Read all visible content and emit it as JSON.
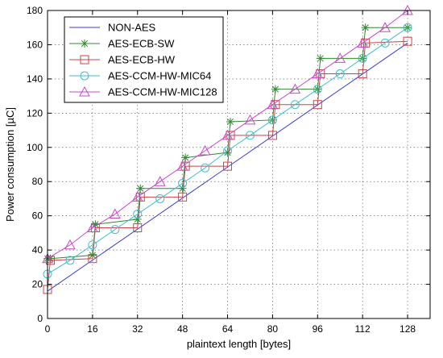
{
  "chart_data": {
    "type": "line",
    "title": "",
    "xlabel": "plaintext length [bytes]",
    "ylabel": "Power consumption [µC]",
    "xlim": [
      0,
      136
    ],
    "ylim": [
      0,
      180
    ],
    "xticks": [
      0,
      16,
      32,
      48,
      64,
      80,
      96,
      112,
      128
    ],
    "yticks": [
      0,
      20,
      40,
      60,
      80,
      100,
      120,
      140,
      160,
      180
    ],
    "grid": true,
    "legend_position": "top-left",
    "series": [
      {
        "name": "NON-AES",
        "color": "#3b3bd6",
        "marker": "none",
        "x": [
          0,
          128
        ],
        "y": [
          16,
          161
        ]
      },
      {
        "name": "AES-ECB-SW",
        "color": "#2e8b2e",
        "marker": "star",
        "x": [
          0,
          1,
          16,
          17,
          32,
          33,
          48,
          49,
          64,
          65,
          80,
          81,
          96,
          97,
          112,
          113,
          128
        ],
        "y": [
          35,
          35,
          37,
          55,
          58,
          76,
          76,
          94,
          97,
          115,
          116,
          134,
          134,
          152,
          152,
          170,
          170
        ]
      },
      {
        "name": "AES-ECB-HW",
        "color": "#cc4444",
        "marker": "square",
        "x": [
          0,
          1,
          16,
          17,
          32,
          33,
          48,
          49,
          64,
          65,
          80,
          81,
          96,
          97,
          112,
          113,
          128
        ],
        "y": [
          17,
          34,
          35,
          53,
          53,
          71,
          71,
          89,
          89,
          107,
          107,
          125,
          125,
          143,
          143,
          161,
          162
        ]
      },
      {
        "name": "AES-CCM-HW-MIC64",
        "color": "#3fbfcf",
        "marker": "circle",
        "x": [
          0,
          8,
          16,
          24,
          32,
          40,
          48,
          56,
          64,
          72,
          80,
          88,
          96,
          104,
          112,
          120,
          128
        ],
        "y": [
          26,
          34,
          43,
          52,
          61,
          70,
          79,
          88,
          98,
          107,
          116,
          125,
          134,
          143,
          152,
          161,
          170
        ]
      },
      {
        "name": "AES-CCM-HW-MIC128",
        "color": "#cc44cc",
        "marker": "triangle",
        "x": [
          0,
          8,
          16,
          24,
          32,
          40,
          48,
          56,
          64,
          72,
          80,
          88,
          96,
          104,
          112,
          120,
          128
        ],
        "y": [
          35,
          43,
          53,
          61,
          71,
          80,
          89,
          98,
          107,
          116,
          125,
          134,
          143,
          152,
          161,
          170,
          180
        ]
      }
    ]
  }
}
